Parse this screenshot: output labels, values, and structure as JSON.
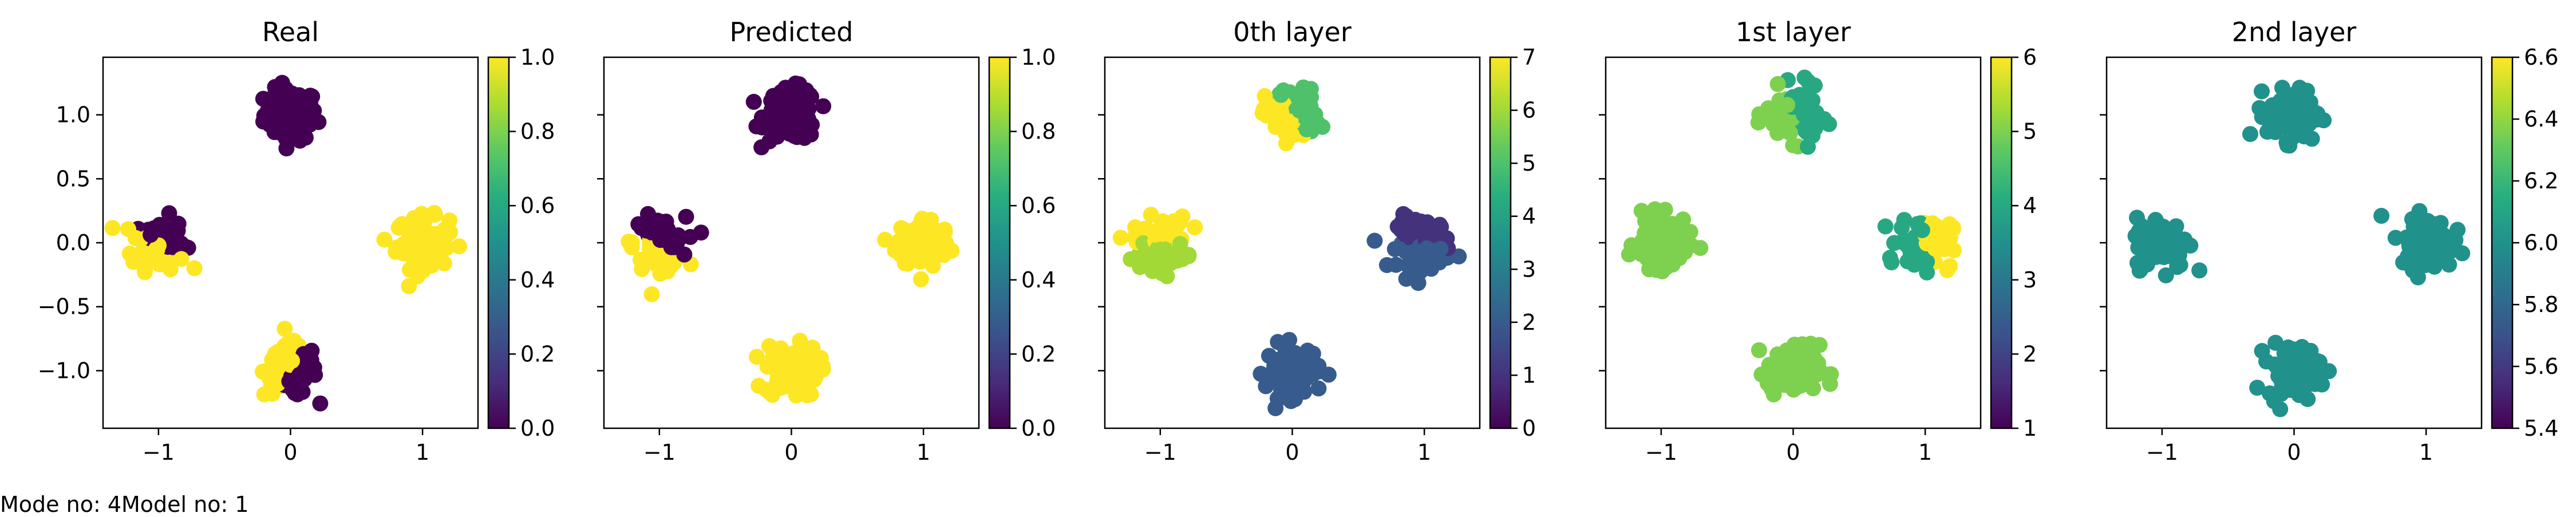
{
  "footer": {
    "mode": "Mode no: 4",
    "model": "Model no: 1"
  },
  "chart_data": [
    {
      "type": "scatter",
      "title": "Real",
      "xlim": [
        -1.42,
        1.42
      ],
      "ylim": [
        -1.45,
        1.45
      ],
      "xticks": [
        -1,
        0,
        1
      ],
      "yticks": [
        -1.0,
        -0.5,
        0.0,
        0.5,
        1.0
      ],
      "colorbar": {
        "cmap": "viridis",
        "range": [
          0.0,
          1.0
        ],
        "ticks": [
          0.0,
          0.2,
          0.4,
          0.6,
          0.8,
          1.0
        ],
        "tick_labels": [
          "0.0",
          "0.2",
          "0.4",
          "0.6",
          "0.8",
          "1.0"
        ]
      },
      "clusters": [
        {
          "center": [
            0,
            1
          ],
          "value": 0.0
        },
        {
          "center": [
            -1,
            0
          ],
          "value": 1.0,
          "split": {
            "dir": [
              0.5,
              1.0
            ],
            "value": 0.0
          }
        },
        {
          "center": [
            1,
            0
          ],
          "value": 1.0
        },
        {
          "center": [
            0,
            -1
          ],
          "value": 1.0,
          "split": {
            "dir": [
              1.0,
              -0.7
            ],
            "value": 0.0
          }
        }
      ]
    },
    {
      "type": "scatter",
      "title": "Predicted",
      "xlim": [
        -1.42,
        1.42
      ],
      "ylim": [
        -1.45,
        1.45
      ],
      "xticks": [
        -1,
        0,
        1
      ],
      "yticks": [
        -1.0,
        -0.5,
        0.0,
        0.5,
        1.0
      ],
      "colorbar": {
        "cmap": "viridis",
        "range": [
          0.0,
          1.0
        ],
        "ticks": [
          0.0,
          0.2,
          0.4,
          0.6,
          0.8,
          1.0
        ],
        "tick_labels": [
          "0.0",
          "0.2",
          "0.4",
          "0.6",
          "0.8",
          "1.0"
        ]
      },
      "clusters": [
        {
          "center": [
            0,
            1
          ],
          "value": 0.0
        },
        {
          "center": [
            -1,
            0
          ],
          "value": 1.0,
          "split": {
            "dir": [
              0.5,
              1.0
            ],
            "value": 0.0
          }
        },
        {
          "center": [
            1,
            0
          ],
          "value": 1.0
        },
        {
          "center": [
            0,
            -1
          ],
          "value": 1.0
        }
      ]
    },
    {
      "type": "scatter",
      "title": "0th layer",
      "xlim": [
        -1.42,
        1.42
      ],
      "ylim": [
        -1.45,
        1.45
      ],
      "xticks": [
        -1,
        0,
        1
      ],
      "yticks": [
        -1.0,
        -0.5,
        0.0,
        0.5,
        1.0
      ],
      "colorbar": {
        "cmap": "viridis",
        "range": [
          0,
          7
        ],
        "ticks": [
          0,
          1,
          2,
          3,
          4,
          5,
          6,
          7
        ],
        "tick_labels": [
          "0",
          "1",
          "2",
          "3",
          "4",
          "5",
          "6",
          "7"
        ]
      },
      "clusters": [
        {
          "center": [
            0,
            1
          ],
          "value": 7,
          "split": {
            "dir": [
              1.0,
              0.6
            ],
            "value": 5
          }
        },
        {
          "center": [
            -1,
            0
          ],
          "value": 6,
          "split": {
            "dir": [
              0.0,
              1.0
            ],
            "value": 7
          }
        },
        {
          "center": [
            1,
            0
          ],
          "value": 2,
          "split": {
            "dir": [
              0.3,
              1.0
            ],
            "value": 1
          }
        },
        {
          "center": [
            0,
            -1
          ],
          "value": 2
        }
      ]
    },
    {
      "type": "scatter",
      "title": "1st layer",
      "xlim": [
        -1.42,
        1.42
      ],
      "ylim": [
        -1.45,
        1.45
      ],
      "xticks": [
        -1,
        0,
        1
      ],
      "yticks": [
        -1.0,
        -0.5,
        0.0,
        0.5,
        1.0
      ],
      "colorbar": {
        "cmap": "viridis",
        "range": [
          1,
          6
        ],
        "ticks": [
          1,
          2,
          3,
          4,
          5,
          6
        ],
        "tick_labels": [
          "1",
          "2",
          "3",
          "4",
          "5",
          "6"
        ]
      },
      "clusters": [
        {
          "center": [
            0,
            1
          ],
          "value": 4,
          "split": {
            "dir": [
              -1.0,
              -0.3
            ],
            "value": 5
          }
        },
        {
          "center": [
            -1,
            0
          ],
          "value": 5
        },
        {
          "center": [
            1,
            0
          ],
          "value": 4,
          "split": {
            "dir": [
              1.0,
              0.1
            ],
            "value": 6
          }
        },
        {
          "center": [
            0,
            -1
          ],
          "value": 5
        }
      ]
    },
    {
      "type": "scatter",
      "title": "2nd layer",
      "xlim": [
        -1.42,
        1.42
      ],
      "ylim": [
        -1.45,
        1.45
      ],
      "xticks": [
        -1,
        0,
        1
      ],
      "yticks": [
        -1.0,
        -0.5,
        0.0,
        0.5,
        1.0
      ],
      "colorbar": {
        "cmap": "viridis",
        "range": [
          5.4,
          6.6
        ],
        "ticks": [
          5.4,
          5.6,
          5.8,
          6.0,
          6.2,
          6.4,
          6.6
        ],
        "tick_labels": [
          "5.4",
          "5.6",
          "5.8",
          "6.0",
          "6.2",
          "6.4",
          "6.6"
        ]
      },
      "clusters": [
        {
          "center": [
            0,
            1
          ],
          "value": 6.0
        },
        {
          "center": [
            -1,
            0
          ],
          "value": 6.0
        },
        {
          "center": [
            1,
            0
          ],
          "value": 6.0
        },
        {
          "center": [
            0,
            -1
          ],
          "value": 6.0
        }
      ]
    }
  ]
}
